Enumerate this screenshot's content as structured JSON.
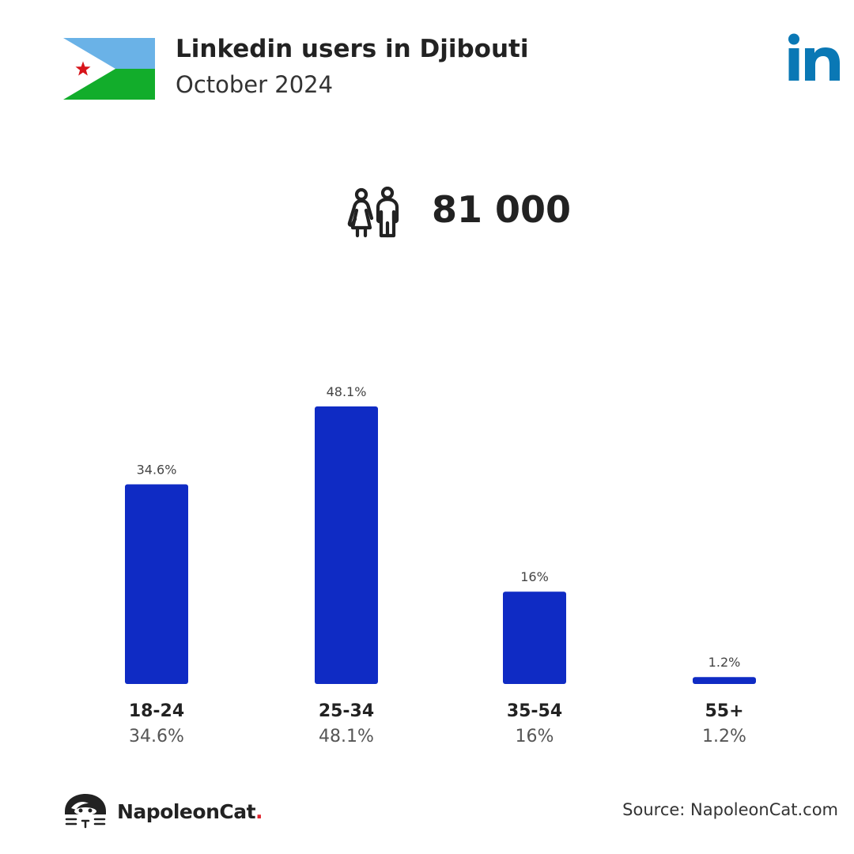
{
  "header": {
    "title": "Linkedin users in Djibouti",
    "subtitle": "October 2024"
  },
  "summary": {
    "total_users": "81 000"
  },
  "colors": {
    "bar": "#0f2bc4",
    "linkedin": "#0a78b5",
    "flag_sky": "#6ab2e7",
    "flag_green": "#12ad2b",
    "flag_star": "#d7141a"
  },
  "icons": {
    "flag": "djibouti-flag-icon",
    "linkedin": "linkedin-logo-icon",
    "users": "users-icon",
    "brand": "napoleoncat-logo-icon"
  },
  "chart_data": {
    "type": "bar",
    "categories": [
      "18-24",
      "25-34",
      "35-54",
      "55+"
    ],
    "values": [
      34.6,
      48.1,
      16,
      1.2
    ],
    "value_labels": [
      "34.6%",
      "48.1%",
      "16%",
      "1.2%"
    ],
    "title": "",
    "xlabel": "",
    "ylabel": "",
    "ylim": [
      0,
      48.1
    ],
    "grid": false
  },
  "footer": {
    "brand_name": "NapoleonCat",
    "brand_dot": ".",
    "source": "Source: NapoleonCat.com"
  }
}
